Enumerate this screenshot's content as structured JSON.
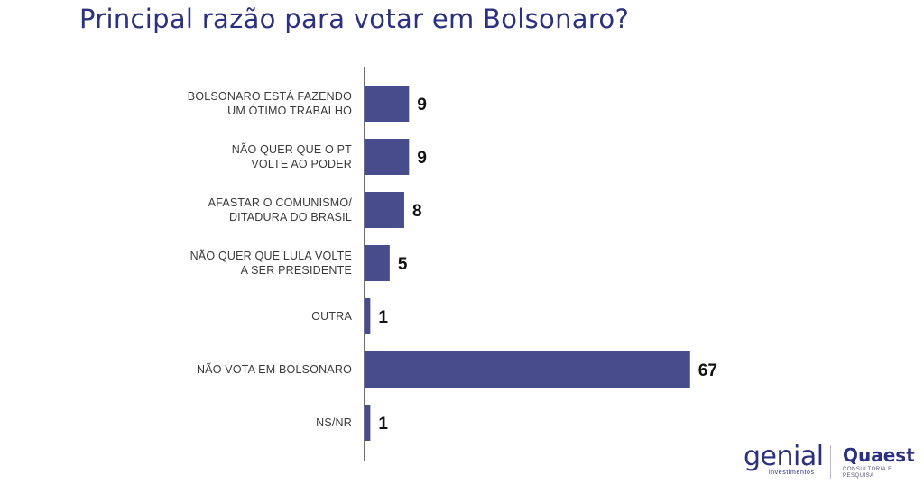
{
  "title": "Principal razão para votar em Bolsonaro?",
  "chart_data": {
    "type": "bar",
    "orientation": "horizontal",
    "categories": [
      [
        "BOLSONARO ESTÁ FAZENDO",
        "UM ÓTIMO TRABALHO"
      ],
      [
        "NÃO QUER QUE O PT",
        "VOLTE AO PODER"
      ],
      [
        "AFASTAR O COMUNISMO/",
        "DITADURA DO BRASIL"
      ],
      [
        "NÃO QUER QUE LULA VOLTE",
        "A SER PRESIDENTE"
      ],
      [
        "OUTRA"
      ],
      [
        "NÃO VOTA EM BOLSONARO"
      ],
      [
        "NS/NR"
      ]
    ],
    "values": [
      9,
      9,
      8,
      5,
      1,
      67,
      1
    ],
    "bar_color": "#474c8c",
    "axis_color": "#222222",
    "xlim": [
      0,
      100
    ],
    "grid": false,
    "legend": "none"
  },
  "logos": {
    "genial": {
      "word": "genial",
      "sub": "investimentos"
    },
    "quaest": {
      "word": "Quaest",
      "sub": "CONSULTORIA E PESQUISA"
    },
    "brand_color": "#2b3080"
  }
}
